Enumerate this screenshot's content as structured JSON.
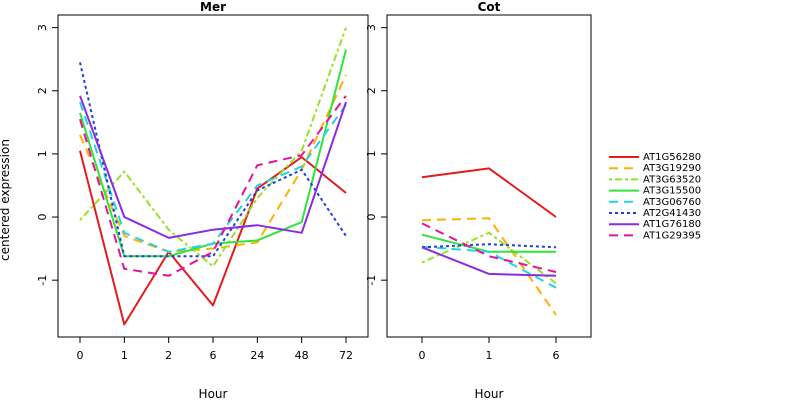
{
  "chart_data": {
    "type": "line",
    "ylabel": "centered expression",
    "series_styles": [
      {
        "name": "AT1G56280",
        "color": "#e41a1c",
        "dash": "solid"
      },
      {
        "name": "AT3G19290",
        "color": "#ffb000",
        "dash": "long-dash"
      },
      {
        "name": "AT3G63520",
        "color": "#99e02b",
        "dash": "dotted-dash"
      },
      {
        "name": "AT3G15500",
        "color": "#2ee53c",
        "dash": "solid"
      },
      {
        "name": "AT3G06760",
        "color": "#20d4e6",
        "dash": "long-dash"
      },
      {
        "name": "AT2G41430",
        "color": "#1e3ee0",
        "dash": "dotted"
      },
      {
        "name": "AT1G76180",
        "color": "#8a2be2",
        "dash": "solid"
      },
      {
        "name": "AT1G29395",
        "color": "#e6139a",
        "dash": "long-dash"
      }
    ],
    "legend": {
      "placement": "right"
    },
    "panels": [
      {
        "title": "Mer",
        "xlabel": "Hour",
        "categories": [
          "0",
          "1",
          "2",
          "6",
          "24",
          "48",
          "72"
        ],
        "ylim": [
          -1.9,
          3.2
        ],
        "yticks": [
          -1,
          0,
          1,
          2,
          3
        ],
        "series": [
          {
            "name": "AT1G56280",
            "values": [
              1.05,
              -1.7,
              -0.55,
              -1.4,
              0.45,
              0.95,
              0.38
            ]
          },
          {
            "name": "AT3G19290",
            "values": [
              1.3,
              -0.3,
              -0.55,
              -0.5,
              -0.4,
              0.75,
              2.25
            ]
          },
          {
            "name": "AT3G63520",
            "values": [
              -0.05,
              0.72,
              -0.2,
              -0.78,
              0.3,
              1.05,
              3.0
            ]
          },
          {
            "name": "AT3G15500",
            "values": [
              1.65,
              -0.62,
              -0.62,
              -0.42,
              -0.37,
              -0.08,
              2.65
            ]
          },
          {
            "name": "AT3G06760",
            "values": [
              1.82,
              -0.25,
              -0.55,
              -0.42,
              0.5,
              0.8,
              1.78
            ]
          },
          {
            "name": "AT2G41430",
            "values": [
              2.45,
              -0.62,
              -0.62,
              -0.62,
              0.42,
              0.75,
              -0.3
            ]
          },
          {
            "name": "AT1G76180",
            "values": [
              1.92,
              0.0,
              -0.33,
              -0.2,
              -0.13,
              -0.25,
              1.82
            ]
          },
          {
            "name": "AT1G29395",
            "values": [
              1.55,
              -0.82,
              -0.93,
              -0.55,
              0.82,
              0.98,
              1.92
            ]
          }
        ]
      },
      {
        "title": "Cot",
        "xlabel": "Hour",
        "categories": [
          "0",
          "1",
          "6"
        ],
        "ylim": [
          -1.9,
          3.2
        ],
        "yticks": [
          -1,
          0,
          1,
          2,
          3
        ],
        "series": [
          {
            "name": "AT1G56280",
            "values": [
              0.63,
              0.77,
              0.0
            ]
          },
          {
            "name": "AT3G19290",
            "values": [
              -0.05,
              -0.02,
              -1.55
            ]
          },
          {
            "name": "AT3G63520",
            "values": [
              -0.72,
              -0.25,
              -1.05
            ]
          },
          {
            "name": "AT3G15500",
            "values": [
              -0.28,
              -0.55,
              -0.55
            ]
          },
          {
            "name": "AT3G06760",
            "values": [
              -0.47,
              -0.55,
              -1.12
            ]
          },
          {
            "name": "AT2G41430",
            "values": [
              -0.48,
              -0.43,
              -0.48
            ]
          },
          {
            "name": "AT1G76180",
            "values": [
              -0.48,
              -0.9,
              -0.93
            ]
          },
          {
            "name": "AT1G29395",
            "values": [
              -0.1,
              -0.62,
              -0.87
            ]
          }
        ]
      }
    ]
  }
}
